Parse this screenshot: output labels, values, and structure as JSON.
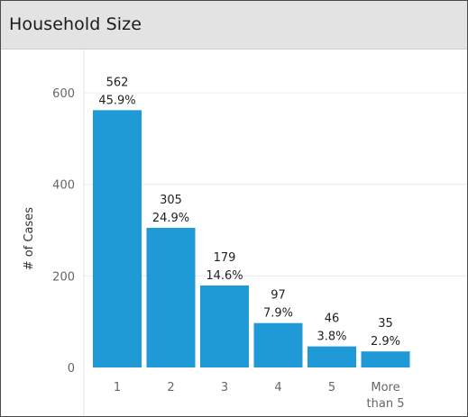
{
  "panel": {
    "title": "Household Size"
  },
  "chart_data": {
    "type": "bar",
    "categories": [
      [
        "1"
      ],
      [
        "2"
      ],
      [
        "3"
      ],
      [
        "4"
      ],
      [
        "5"
      ],
      [
        "More",
        "than 5"
      ]
    ],
    "values": [
      562,
      305,
      179,
      97,
      46,
      35
    ],
    "percents": [
      "45.9%",
      "24.9%",
      "14.6%",
      "7.9%",
      "3.8%",
      "2.9%"
    ],
    "value_labels": [
      "562",
      "305",
      "179",
      "97",
      "46",
      "35"
    ],
    "ylabel": "# of Cases",
    "yticks": [
      0,
      200,
      400,
      600
    ],
    "ytick_labels": [
      "0",
      "200",
      "400",
      "600"
    ],
    "ylim": [
      0,
      680
    ],
    "grid": true,
    "bar_color": "#1f9ad6",
    "title": "Household Size"
  }
}
